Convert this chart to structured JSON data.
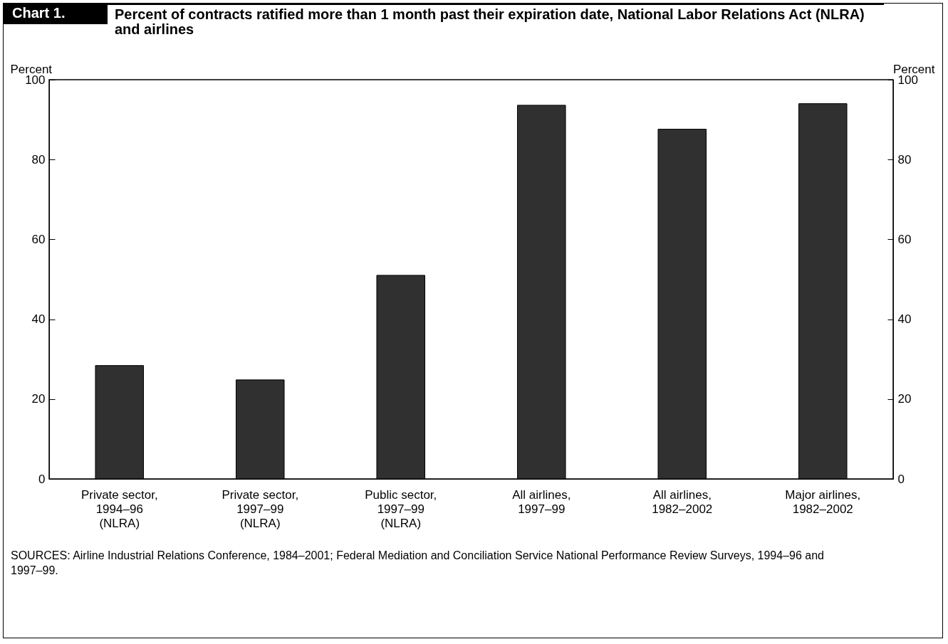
{
  "chart_data": {
    "type": "bar",
    "title": "Percent of contracts ratified more than 1 month past their expiration date, National Labor Relations Act (NLRA) and airlines",
    "annotations": [
      "Chart 1.",
      "SOURCES:  Airline Industrial Relations Conference, 1984–2001; Federal Mediation and Conciliation Service National Performance Review Surveys, 1994–96 and 1997–99."
    ],
    "ylabel": "Percent",
    "y2label": "Percent",
    "categories": [
      "Private sector,\n1994–96\n(NLRA)",
      "Private sector,\n1997–99\n(NLRA)",
      "Public sector,\n1997–99\n(NLRA)",
      "All airlines,\n1997–99",
      "All airlines,\n1982–2002",
      "Major airlines,\n1982–2002"
    ],
    "values": [
      28.4,
      24.8,
      51.0,
      93.6,
      87.6,
      94.0
    ],
    "color": "#303030",
    "ylim": [
      0,
      100
    ],
    "yticks": [
      0,
      20,
      40,
      60,
      80,
      100
    ],
    "y2lim": [
      0,
      100
    ],
    "y2ticks": [
      0,
      20,
      40,
      60,
      80,
      100
    ],
    "grid": false
  }
}
